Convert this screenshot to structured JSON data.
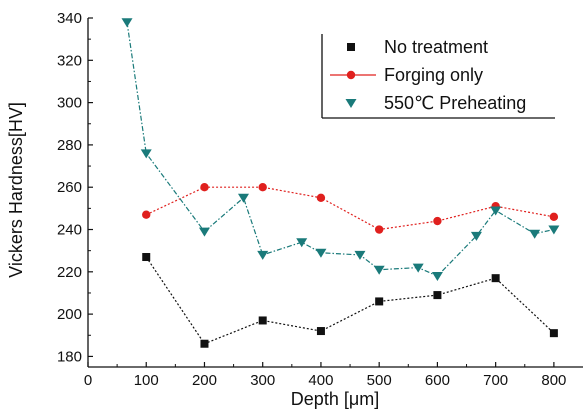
{
  "chart_data": {
    "type": "line",
    "xlabel": "Depth [μm]",
    "ylabel": "Vickers Hardness[HV]",
    "xlim": [
      0,
      850
    ],
    "ylim": [
      175,
      340
    ],
    "x_ticks": [
      0,
      100,
      200,
      300,
      400,
      500,
      600,
      700,
      800
    ],
    "y_ticks": [
      180,
      200,
      220,
      240,
      260,
      280,
      300,
      320,
      340
    ],
    "grid": false,
    "legend_position": "top-right",
    "series": [
      {
        "name": "No treatment",
        "color": "#111111",
        "marker": "square",
        "line_style": "dotted",
        "x": [
          100,
          200,
          300,
          400,
          500,
          600,
          700,
          800
        ],
        "y": [
          227,
          186,
          197,
          192,
          206,
          209,
          217,
          191
        ]
      },
      {
        "name": "Forging only",
        "color": "#e0201e",
        "marker": "circle",
        "line_style": "dotted",
        "x": [
          100,
          200,
          300,
          400,
          500,
          600,
          700,
          800
        ],
        "y": [
          247,
          260,
          260,
          255,
          240,
          244,
          251,
          246
        ]
      },
      {
        "name": "550℃ Preheating",
        "color": "#1a7a7a",
        "marker": "triangle-down",
        "line_style": "dash-dot",
        "x": [
          67,
          100,
          200,
          267,
          300,
          367,
          400,
          467,
          500,
          567,
          600,
          667,
          700,
          767,
          800
        ],
        "y": [
          338,
          276,
          239,
          255,
          228,
          234,
          229,
          228,
          221,
          222,
          218,
          237,
          249,
          238,
          240
        ]
      }
    ]
  }
}
